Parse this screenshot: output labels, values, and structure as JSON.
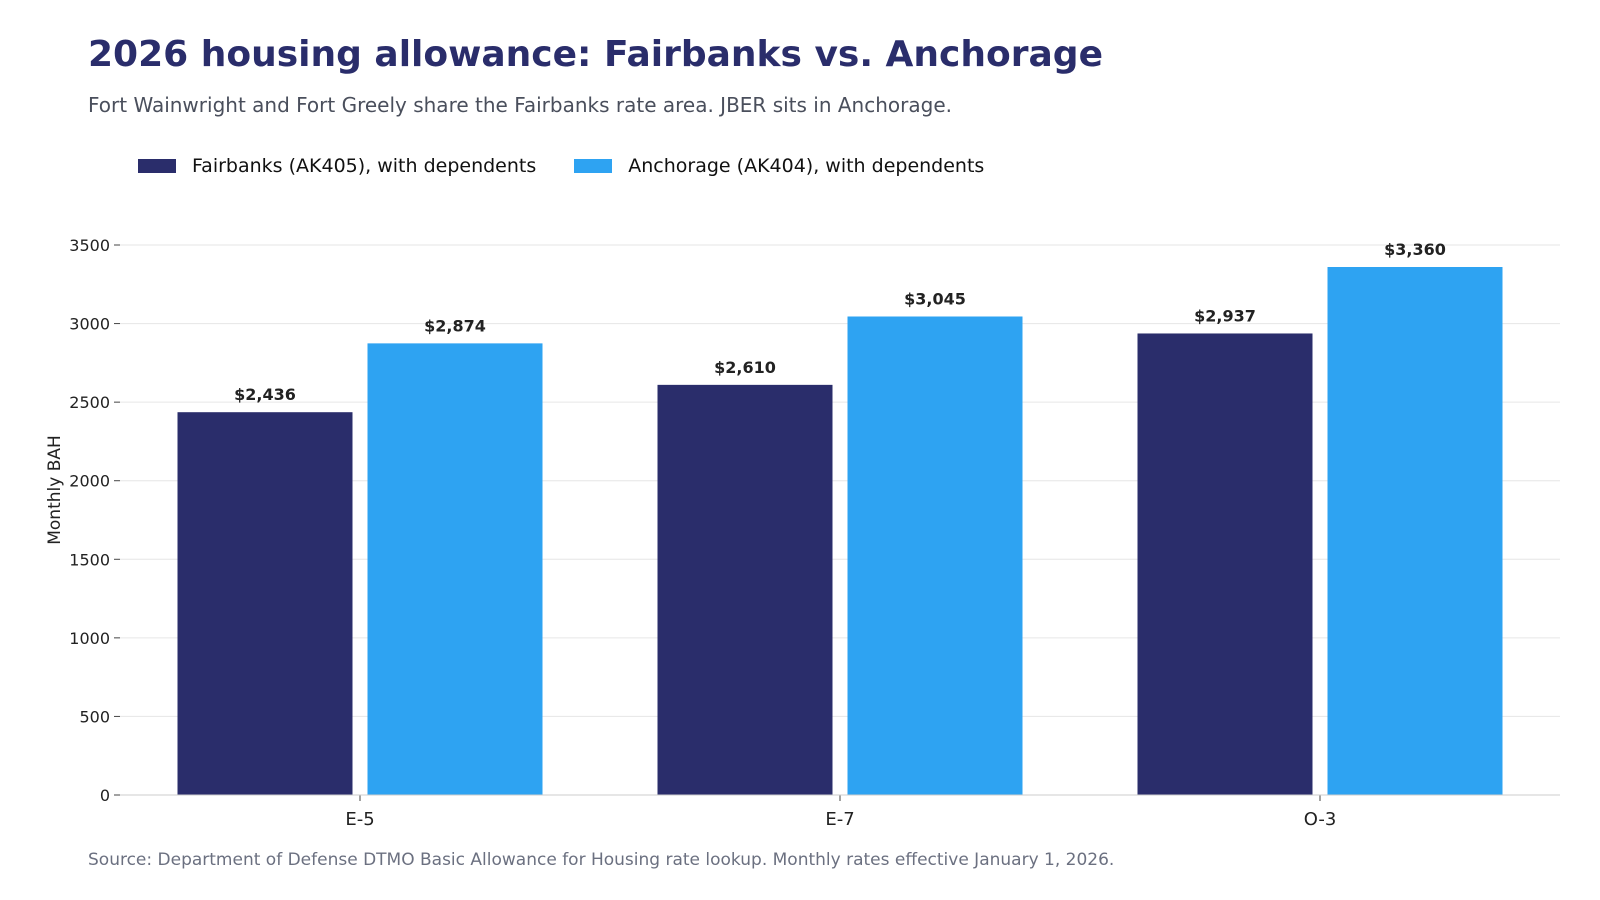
{
  "header": {
    "title": "2026 housing allowance: Fairbanks vs. Anchorage",
    "subtitle": "Fort Wainwright and Fort Greely share the Fairbanks rate area. JBER sits in Anchorage."
  },
  "footer": {
    "source": "Source: Department of Defense DTMO Basic Allowance for Housing rate lookup. Monthly rates effective January 1, 2026."
  },
  "colors": {
    "fairbanks": "#2a2d6b",
    "anchorage": "#2ea3f2",
    "grid": "#e6e6e6"
  },
  "chart_data": {
    "type": "bar",
    "title": "2026 housing allowance: Fairbanks vs. Anchorage",
    "subtitle": "Fort Wainwright and Fort Greely share the Fairbanks rate area. JBER sits in Anchorage.",
    "xlabel": "",
    "ylabel": "Monthly BAH",
    "categories": [
      "E-5",
      "E-7",
      "O-3"
    ],
    "ylim": [
      0,
      3500
    ],
    "yticks": [
      0,
      500,
      1000,
      1500,
      2000,
      2500,
      3000,
      3500
    ],
    "grid": true,
    "legend_position": "top-left",
    "series": [
      {
        "name": "Fairbanks (AK405), with dependents",
        "values": [
          2436,
          2610,
          2937
        ],
        "labels": [
          "$2,436",
          "$2,610",
          "$2,937"
        ],
        "color": "#2a2d6b"
      },
      {
        "name": "Anchorage (AK404), with dependents",
        "values": [
          2874,
          3045,
          3360
        ],
        "labels": [
          "$2,874",
          "$3,045",
          "$3,360"
        ],
        "color": "#2ea3f2"
      }
    ]
  }
}
